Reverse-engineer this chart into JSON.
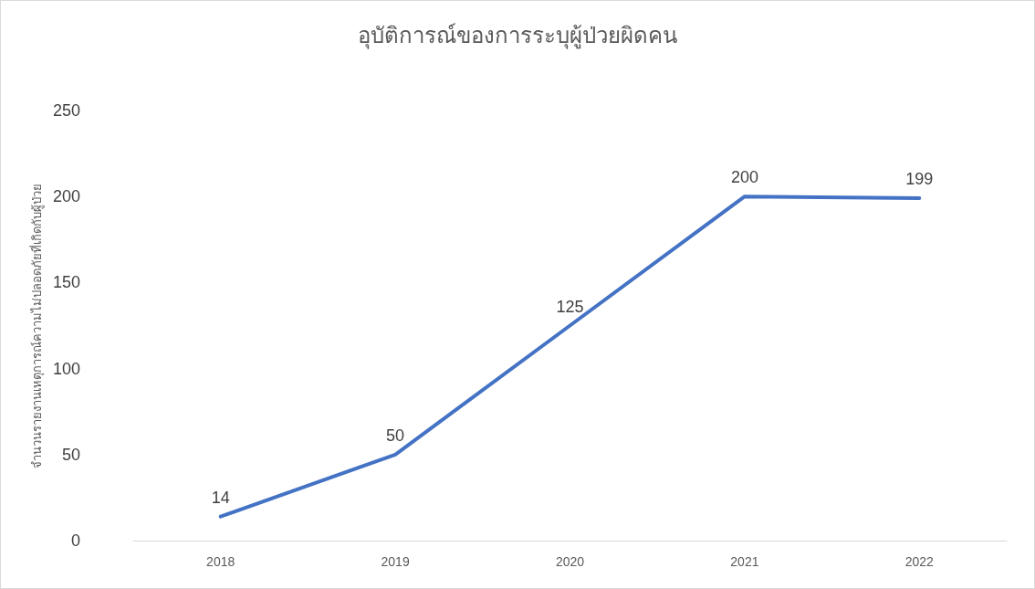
{
  "chart_data": {
    "type": "line",
    "title": "อุบัติการณ์ของการระบุผู้ป่วยผิดคน",
    "ylabel": "จำนวนรายงานเหตุการณ์ความไม่ปลอดภัยที่เกิดกับผู้ป่วย",
    "categories": [
      "2018",
      "2019",
      "2020",
      "2021",
      "2022"
    ],
    "series": [
      {
        "color": "#4472c4",
        "values": [
          14,
          50,
          125,
          200,
          199
        ]
      }
    ],
    "ylim": [
      0,
      250
    ],
    "yticks": [
      0,
      50,
      100,
      150,
      200,
      250
    ],
    "grid": false,
    "marker": "none",
    "line_style": "solid",
    "data_labels": true
  }
}
